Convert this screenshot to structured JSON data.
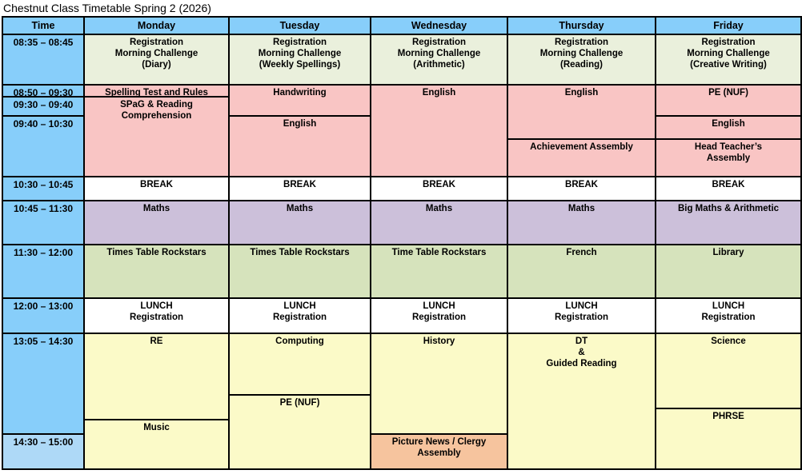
{
  "title": "Chestnut Class Timetable Spring 2 (2026)",
  "colors": {
    "blue": "#87CEFA",
    "blueLight": "#AED9F7",
    "green": "#EAF0DC",
    "pink": "#F9C5C4",
    "white": "#FFFFFF",
    "purple": "#CCC0DA",
    "olive": "#D6E3BC",
    "yellow": "#FBFAC8",
    "orange": "#F6C49E"
  },
  "header": {
    "time": "Time",
    "days": [
      "Monday",
      "Tuesday",
      "Wednesday",
      "Thursday",
      "Friday"
    ]
  },
  "cells": [
    {
      "name": "time-0835",
      "col": 1,
      "row": 2,
      "span": 1,
      "color": "blue",
      "text": "08:35 – 08:45"
    },
    {
      "name": "time-0850",
      "col": 1,
      "row": 3,
      "span": 1,
      "color": "blue",
      "text": "08:50 – 09:30"
    },
    {
      "name": "time-0930",
      "col": 1,
      "row": 4,
      "span": 1,
      "color": "blue",
      "text": "09:30 – 09:40"
    },
    {
      "name": "time-0940",
      "col": 1,
      "row": 5,
      "span": 2,
      "color": "blue",
      "text": "09:40 – 10:30"
    },
    {
      "name": "time-1030",
      "col": 1,
      "row": 7,
      "span": 1,
      "color": "blue",
      "text": "10:30 – 10:45"
    },
    {
      "name": "time-1045",
      "col": 1,
      "row": 8,
      "span": 1,
      "color": "blue",
      "text": "10:45 – 11:30"
    },
    {
      "name": "time-1130",
      "col": 1,
      "row": 9,
      "span": 1,
      "color": "blue",
      "text": "11:30 – 12:00"
    },
    {
      "name": "time-1200",
      "col": 1,
      "row": 10,
      "span": 1,
      "color": "blue",
      "text": "12:00 – 13:00"
    },
    {
      "name": "time-1305",
      "col": 1,
      "row": 11,
      "span": 4,
      "color": "blue",
      "text": "13:05 – 14:30"
    },
    {
      "name": "time-1430",
      "col": 1,
      "row": 15,
      "span": 1,
      "color": "blueLight",
      "text": "14:30 – 15:00"
    },
    {
      "name": "monday-registration",
      "col": 2,
      "row": 2,
      "span": 1,
      "color": "green",
      "text": "Registration\nMorning Challenge\n(Diary)"
    },
    {
      "name": "monday-spelling-test",
      "col": 2,
      "row": 3,
      "span": 1,
      "color": "pink",
      "text": "Spelling Test and Rules"
    },
    {
      "name": "monday-spag-reading",
      "col": 2,
      "row": 4,
      "span": 3,
      "color": "pink",
      "text": "SPaG & Reading\nComprehension"
    },
    {
      "name": "monday-break",
      "col": 2,
      "row": 7,
      "span": 1,
      "color": "white",
      "text": "BREAK"
    },
    {
      "name": "monday-maths",
      "col": 2,
      "row": 8,
      "span": 1,
      "color": "purple",
      "text": "Maths"
    },
    {
      "name": "monday-times-table-rockstars",
      "col": 2,
      "row": 9,
      "span": 1,
      "color": "olive",
      "text": "Times Table Rockstars"
    },
    {
      "name": "monday-lunch",
      "col": 2,
      "row": 10,
      "span": 1,
      "color": "white",
      "text": "LUNCH\nRegistration"
    },
    {
      "name": "monday-re",
      "col": 2,
      "row": 11,
      "span": 3,
      "color": "yellow",
      "text": "RE"
    },
    {
      "name": "monday-music",
      "col": 2,
      "row": 14,
      "span": 2,
      "color": "yellow",
      "text": "Music"
    },
    {
      "name": "tuesday-registration",
      "col": 3,
      "row": 2,
      "span": 1,
      "color": "green",
      "text": "Registration\nMorning Challenge\n(Weekly Spellings)"
    },
    {
      "name": "tuesday-handwriting",
      "col": 3,
      "row": 3,
      "span": 2,
      "color": "pink",
      "text": "Handwriting"
    },
    {
      "name": "tuesday-english",
      "col": 3,
      "row": 5,
      "span": 2,
      "color": "pink",
      "text": "English"
    },
    {
      "name": "tuesday-break",
      "col": 3,
      "row": 7,
      "span": 1,
      "color": "white",
      "text": "BREAK"
    },
    {
      "name": "tuesday-maths",
      "col": 3,
      "row": 8,
      "span": 1,
      "color": "purple",
      "text": "Maths"
    },
    {
      "name": "tuesday-times-table-rockstars",
      "col": 3,
      "row": 9,
      "span": 1,
      "color": "olive",
      "text": "Times Table Rockstars"
    },
    {
      "name": "tuesday-lunch",
      "col": 3,
      "row": 10,
      "span": 1,
      "color": "white",
      "text": "LUNCH\nRegistration"
    },
    {
      "name": "tuesday-computing",
      "col": 3,
      "row": 11,
      "span": 1,
      "color": "yellow",
      "text": "Computing"
    },
    {
      "name": "tuesday-pe",
      "col": 3,
      "row": 12,
      "span": 4,
      "color": "yellow",
      "text": "PE (NUF)"
    },
    {
      "name": "wednesday-registration",
      "col": 4,
      "row": 2,
      "span": 1,
      "color": "green",
      "text": "Registration\nMorning Challenge\n(Arithmetic)"
    },
    {
      "name": "wednesday-english",
      "col": 4,
      "row": 3,
      "span": 4,
      "color": "pink",
      "text": "English"
    },
    {
      "name": "wednesday-break",
      "col": 4,
      "row": 7,
      "span": 1,
      "color": "white",
      "text": "BREAK"
    },
    {
      "name": "wednesday-maths",
      "col": 4,
      "row": 8,
      "span": 1,
      "color": "purple",
      "text": "Maths"
    },
    {
      "name": "wednesday-time-table-rockstars",
      "col": 4,
      "row": 9,
      "span": 1,
      "color": "olive",
      "text": "Time Table Rockstars"
    },
    {
      "name": "wednesday-lunch",
      "col": 4,
      "row": 10,
      "span": 1,
      "color": "white",
      "text": "LUNCH\nRegistration"
    },
    {
      "name": "wednesday-history",
      "col": 4,
      "row": 11,
      "span": 4,
      "color": "yellow",
      "text": "History"
    },
    {
      "name": "wednesday-picture-news",
      "col": 4,
      "row": 15,
      "span": 1,
      "color": "orange",
      "text": "Picture News / Clergy\nAssembly"
    },
    {
      "name": "thursday-registration",
      "col": 5,
      "row": 2,
      "span": 1,
      "color": "green",
      "text": "Registration\nMorning Challenge\n(Reading)"
    },
    {
      "name": "thursday-english",
      "col": 5,
      "row": 3,
      "span": 3,
      "color": "pink",
      "text": "English"
    },
    {
      "name": "thursday-achievement-assembly",
      "col": 5,
      "row": 6,
      "span": 1,
      "color": "pink",
      "text": "Achievement Assembly"
    },
    {
      "name": "thursday-break",
      "col": 5,
      "row": 7,
      "span": 1,
      "color": "white",
      "text": "BREAK"
    },
    {
      "name": "thursday-maths",
      "col": 5,
      "row": 8,
      "span": 1,
      "color": "purple",
      "text": "Maths"
    },
    {
      "name": "thursday-french",
      "col": 5,
      "row": 9,
      "span": 1,
      "color": "olive",
      "text": "French"
    },
    {
      "name": "thursday-lunch",
      "col": 5,
      "row": 10,
      "span": 1,
      "color": "white",
      "text": "LUNCH\nRegistration"
    },
    {
      "name": "thursday-dt-guided-reading",
      "col": 5,
      "row": 11,
      "span": 5,
      "color": "yellow",
      "text": "DT\n&\nGuided Reading"
    },
    {
      "name": "friday-registration",
      "col": 6,
      "row": 2,
      "span": 1,
      "color": "green",
      "text": "Registration\nMorning Challenge\n(Creative Writing)"
    },
    {
      "name": "friday-pe",
      "col": 6,
      "row": 3,
      "span": 2,
      "color": "pink",
      "text": "PE (NUF)"
    },
    {
      "name": "friday-english",
      "col": 6,
      "row": 5,
      "span": 1,
      "color": "pink",
      "text": "English"
    },
    {
      "name": "friday-head-teachers-assembly",
      "col": 6,
      "row": 6,
      "span": 1,
      "color": "pink",
      "text": "Head Teacher’s\nAssembly"
    },
    {
      "name": "friday-break",
      "col": 6,
      "row": 7,
      "span": 1,
      "color": "white",
      "text": "BREAK"
    },
    {
      "name": "friday-big-maths-arithmetic",
      "col": 6,
      "row": 8,
      "span": 1,
      "color": "purple",
      "text": "Big Maths & Arithmetic"
    },
    {
      "name": "friday-library",
      "col": 6,
      "row": 9,
      "span": 1,
      "color": "olive",
      "text": "Library"
    },
    {
      "name": "friday-lunch",
      "col": 6,
      "row": 10,
      "span": 1,
      "color": "white",
      "text": "LUNCH\nRegistration"
    },
    {
      "name": "friday-science",
      "col": 6,
      "row": 11,
      "span": 2,
      "color": "yellow",
      "text": "Science"
    },
    {
      "name": "friday-phrse",
      "col": 6,
      "row": 13,
      "span": 3,
      "color": "yellow",
      "text": "PHRSE"
    }
  ]
}
